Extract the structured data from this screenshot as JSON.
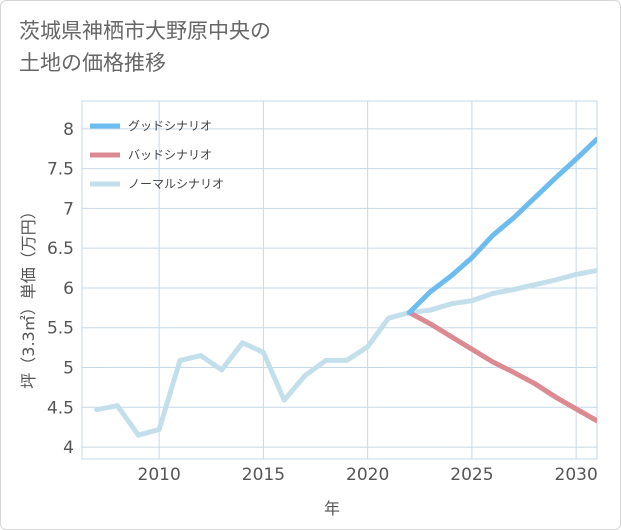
{
  "title_lines": [
    "茨城県神栖市大野原中央の",
    "土地の価格推移"
  ],
  "chart_data": {
    "type": "line",
    "title": "茨城県神栖市大野原中央の土地の価格推移",
    "xlabel": "年",
    "ylabel": "坪（3.3㎡）単価（万円）",
    "xlim": [
      2006.3,
      2031
    ],
    "ylim": [
      3.85,
      8.35
    ],
    "xticks": [
      2010,
      2015,
      2020,
      2025,
      2030
    ],
    "yticks": [
      4,
      4.5,
      5,
      5.5,
      6,
      6.5,
      7,
      7.5,
      8
    ],
    "grid": true,
    "legend_position": "top-left",
    "series": [
      {
        "name": "グッドシナリオ",
        "color": "#6dbcf0",
        "x": [
          2022,
          2023,
          2024,
          2025,
          2026,
          2027,
          2028,
          2029,
          2030,
          2031
        ],
        "y": [
          5.69,
          5.95,
          6.15,
          6.38,
          6.66,
          6.88,
          7.13,
          7.38,
          7.62,
          7.87
        ]
      },
      {
        "name": "バッドシナリオ",
        "color": "#dc8a91",
        "x": [
          2022,
          2023,
          2024,
          2025,
          2026,
          2027,
          2028,
          2029,
          2030,
          2031
        ],
        "y": [
          5.69,
          5.55,
          5.39,
          5.23,
          5.07,
          4.94,
          4.8,
          4.63,
          4.48,
          4.33
        ]
      },
      {
        "name": "ノーマルシナリオ",
        "color": "#c3dfec",
        "x": [
          2007,
          2008,
          2009,
          2010,
          2011,
          2012,
          2013,
          2014,
          2015,
          2016,
          2017,
          2018,
          2019,
          2020,
          2021,
          2022,
          2023,
          2024,
          2025,
          2026,
          2027,
          2028,
          2029,
          2030,
          2031
        ],
        "y": [
          4.47,
          4.52,
          4.15,
          4.22,
          5.09,
          5.15,
          4.97,
          5.31,
          5.19,
          4.59,
          4.9,
          5.09,
          5.09,
          5.26,
          5.62,
          5.69,
          5.72,
          5.8,
          5.84,
          5.93,
          5.98,
          6.04,
          6.1,
          6.17,
          6.22
        ]
      }
    ]
  }
}
